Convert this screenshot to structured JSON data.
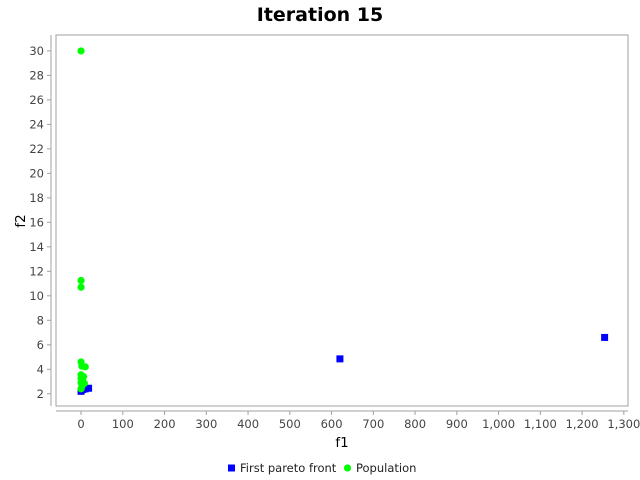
{
  "chart_data": {
    "type": "scatter",
    "title": "Iteration 15",
    "xlabel": "f1",
    "ylabel": "f2",
    "xlim": [
      -60,
      1310
    ],
    "ylim": [
      1,
      31.3
    ],
    "xticks": [
      0,
      100,
      200,
      300,
      400,
      500,
      600,
      700,
      800,
      900,
      1000,
      1100,
      1200,
      1300
    ],
    "xtick_labels": [
      "0",
      "100",
      "200",
      "300",
      "400",
      "500",
      "600",
      "700",
      "800",
      "900",
      "1,000",
      "1,100",
      "1,200",
      "1,300"
    ],
    "yticks": [
      2,
      4,
      6,
      8,
      10,
      12,
      14,
      16,
      18,
      20,
      22,
      24,
      26,
      28,
      30
    ],
    "ytick_labels": [
      "2",
      "4",
      "6",
      "8",
      "10",
      "12",
      "14",
      "16",
      "18",
      "20",
      "22",
      "24",
      "26",
      "28",
      "30"
    ],
    "grid": false,
    "legend_position": "bottom",
    "series": [
      {
        "name": "First pareto front",
        "marker": "square",
        "color": "#0000ff",
        "points": [
          {
            "x": 1254,
            "y": 6.6
          },
          {
            "x": 620,
            "y": 4.85
          },
          {
            "x": 18,
            "y": 2.45
          },
          {
            "x": 10,
            "y": 2.4
          },
          {
            "x": 4,
            "y": 2.35
          },
          {
            "x": 0,
            "y": 2.2
          }
        ]
      },
      {
        "name": "Population",
        "marker": "circle",
        "color": "#00ff00",
        "points": [
          {
            "x": 0,
            "y": 30.0
          },
          {
            "x": 0,
            "y": 11.25
          },
          {
            "x": 0,
            "y": 10.7
          },
          {
            "x": 0,
            "y": 4.6
          },
          {
            "x": 2,
            "y": 4.25
          },
          {
            "x": 10,
            "y": 4.2
          },
          {
            "x": 0,
            "y": 3.55
          },
          {
            "x": 6,
            "y": 3.4
          },
          {
            "x": 0,
            "y": 3.25
          },
          {
            "x": 4,
            "y": 3.05
          },
          {
            "x": 0,
            "y": 2.9
          },
          {
            "x": 8,
            "y": 2.85
          },
          {
            "x": 2,
            "y": 2.6
          },
          {
            "x": 0,
            "y": 2.4
          }
        ]
      }
    ]
  }
}
